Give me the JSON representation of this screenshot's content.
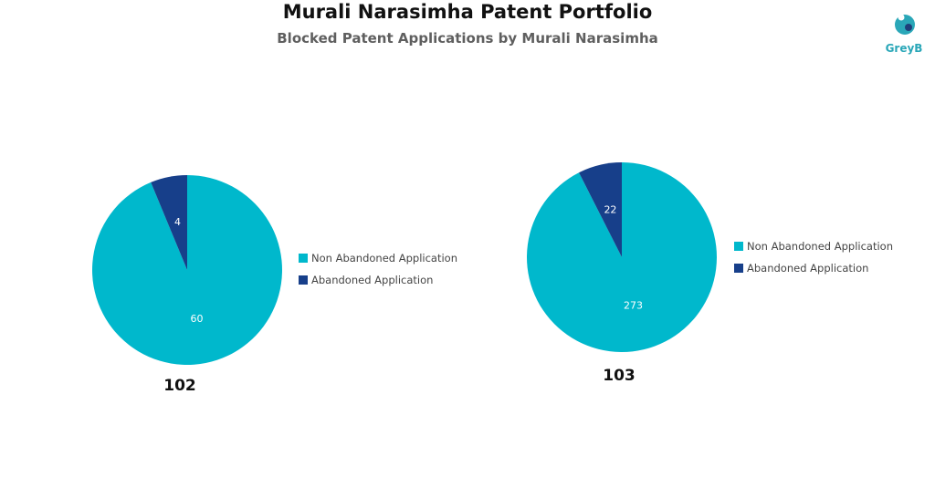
{
  "header": {
    "title": "Murali Narasimha Patent Portfolio",
    "subtitle": "Blocked Patent Applications by Murali Narasimha"
  },
  "logo": {
    "text": "GreyB",
    "icon": "greyb-logo-icon",
    "color": "#2aa7b8"
  },
  "chart_data": [
    {
      "type": "pie",
      "categories": [
        "Non Abandoned Application",
        "Abandoned Application"
      ],
      "values": [
        60,
        4
      ],
      "colors": [
        "#00b8cc",
        "#173f8a"
      ],
      "total_label": "102",
      "legend": "right"
    },
    {
      "type": "pie",
      "categories": [
        "Non Abandoned Application",
        "Abandoned Application"
      ],
      "values": [
        273,
        22
      ],
      "colors": [
        "#00b8cc",
        "#173f8a"
      ],
      "total_label": "103",
      "legend": "right"
    }
  ]
}
